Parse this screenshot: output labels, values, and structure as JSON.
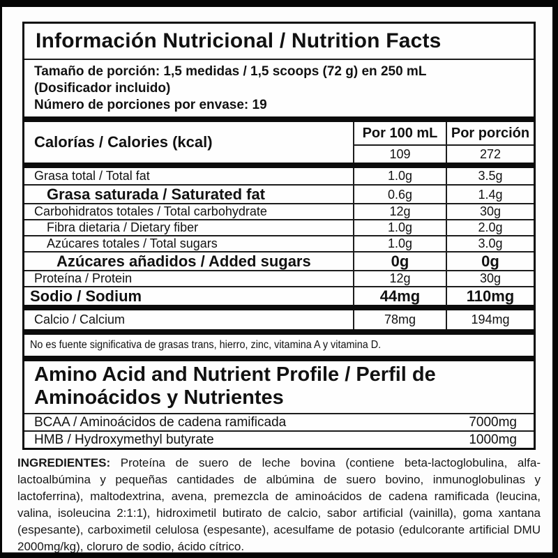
{
  "colors": {
    "text": "#111111",
    "background": "#fdfdfd",
    "frame": "#050505"
  },
  "header": {
    "title": "Información Nutricional / Nutrition Facts"
  },
  "serving": {
    "line1": "Tamaño de porción: 1,5 medidas / 1,5 scoops (72 g) en 250 mL",
    "line2": "(Dosificador incluido)",
    "line3": "Número de porciones por envase: 19"
  },
  "table": {
    "calories_label": "Calorías / Calories (kcal)",
    "columns": [
      "Por 100 mL",
      "Por porción"
    ],
    "calories_per_100ml": "109",
    "calories_per_portion": "272",
    "rows": [
      {
        "label": "Grasa total / Total fat",
        "per_100ml": "1.0g",
        "per_portion": "3.5g"
      },
      {
        "label": "Grasa saturada / Saturated fat",
        "per_100ml": "0.6g",
        "per_portion": "1.4g"
      },
      {
        "label": "Carbohidratos totales / Total carbohydrate",
        "per_100ml": "12g",
        "per_portion": "30g"
      },
      {
        "label": "Fibra dietaria / Dietary fiber",
        "per_100ml": "1.0g",
        "per_portion": "2.0g"
      },
      {
        "label": "Azúcares totales / Total sugars",
        "per_100ml": "1.0g",
        "per_portion": "3.0g"
      },
      {
        "label": "Azúcares añadidos / Added sugars",
        "per_100ml": "0g",
        "per_portion": "0g"
      },
      {
        "label": "Proteína / Protein",
        "per_100ml": "12g",
        "per_portion": "30g"
      },
      {
        "label": "Sodio / Sodium",
        "per_100ml": "44mg",
        "per_portion": "110mg"
      },
      {
        "label": "Calcio / Calcium",
        "per_100ml": "78mg",
        "per_portion": "194mg"
      }
    ],
    "footnote": "No es fuente significativa de grasas trans, hierro, zinc, vitamina A y vitamina D."
  },
  "amino_profile": {
    "title": "Amino Acid and Nutrient Profile / Perfil de Aminoácidos y Nutrientes",
    "rows": [
      {
        "label": "BCAA / Aminoácidos de cadena ramificada",
        "value": "7000mg"
      },
      {
        "label": "HMB / Hydroxymethyl butyrate",
        "value": "1000mg"
      }
    ]
  },
  "ingredients": {
    "label": "INGREDIENTES:",
    "text": "Proteína de suero de leche bovina (contiene beta-lactoglobulina, alfa-lactoalbúmina y pequeñas cantidades de albúmina de suero bovino, inmunoglobulinas y lactoferrina), maltodextrina, avena, premezcla de aminoácidos de cadena ramificada (leucina, valina, isoleucina 2:1:1), hidroximetil butirato de calcio, sabor artificial (vainilla), goma xantana (espesante), carboximetil celulosa (espesante), acesulfame de potasio (edulcorante artificial DMU 2000mg/kg), cloruro de sodio, ácido cítrico."
  }
}
